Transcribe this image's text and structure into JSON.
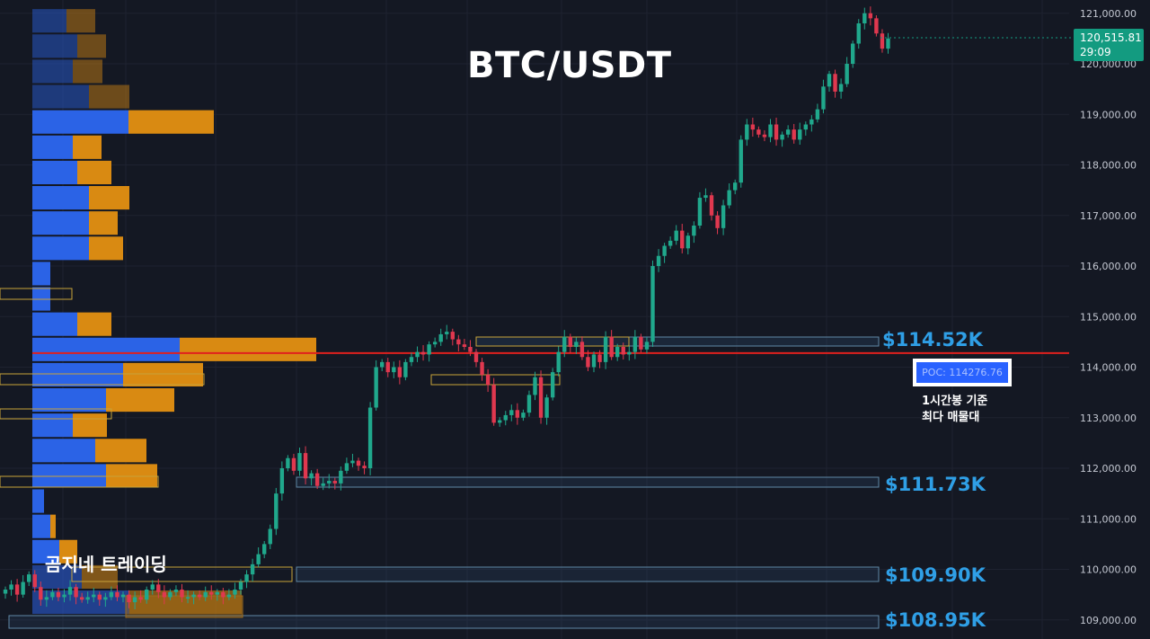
{
  "chart_data": {
    "type": "candlestick",
    "title": "BTC/USDT",
    "watermark": "곰지네 트레이딩",
    "price_axis": {
      "ticks": [
        "121,000.00",
        "120,000.00",
        "119,000.00",
        "118,000.00",
        "117,000.00",
        "116,000.00",
        "115,000.00",
        "114,000.00",
        "113,000.00",
        "112,000.00",
        "111,000.00",
        "110,000.00",
        "109,000.00"
      ],
      "range": [
        108650,
        121250
      ]
    },
    "current_price": {
      "price": "120,515.81",
      "countdown": "29:09",
      "color": "#139b80"
    },
    "poc": {
      "label": "POC: 114276.76",
      "value": 114276.76,
      "note_lines": [
        "1시간봉 기준",
        "최다 매물대"
      ],
      "line_color": "#e0201e"
    },
    "levels": [
      {
        "label": "$114.52K",
        "value": 114520
      },
      {
        "label": "$111.73K",
        "value": 111730
      },
      {
        "label": "$109.90K",
        "value": 109900
      },
      {
        "label": "$108.95K",
        "value": 108950
      }
    ],
    "candles_close": [
      109600,
      109700,
      109500,
      109750,
      109900,
      109650,
      109400,
      109450,
      109550,
      109450,
      109500,
      109650,
      109450,
      109400,
      109450,
      109500,
      109400,
      109450,
      109550,
      109450,
      109500,
      109350,
      109450,
      109400,
      109600,
      109700,
      109550,
      109450,
      109550,
      109600,
      109450,
      109450,
      109500,
      109450,
      109550,
      109500,
      109550,
      109450,
      109500,
      109600,
      109750,
      109900,
      110100,
      110300,
      110500,
      110800,
      111500,
      112000,
      112200,
      111950,
      112300,
      111800,
      111900,
      111650,
      111700,
      111750,
      111700,
      111950,
      112100,
      112150,
      112050,
      112000,
      113200,
      114000,
      114100,
      113900,
      114000,
      113800,
      114100,
      114200,
      114300,
      114250,
      114450,
      114500,
      114650,
      114700,
      114550,
      114450,
      114400,
      114300,
      114100,
      113850,
      113650,
      112900,
      112950,
      113050,
      113150,
      113000,
      113100,
      113450,
      113800,
      113000,
      113400,
      113900,
      114300,
      114600,
      114400,
      114500,
      114200,
      114000,
      114250,
      114100,
      114600,
      114200,
      114400,
      114250,
      114300,
      114600,
      114350,
      114500,
      116000,
      116200,
      116400,
      116500,
      116700,
      116350,
      116600,
      116800,
      117350,
      117400,
      117000,
      116750,
      117200,
      117500,
      117650,
      118500,
      118800,
      118700,
      118600,
      118550,
      118800,
      118500,
      118600,
      118700,
      118500,
      118700,
      118800,
      118900,
      119100,
      119550,
      119800,
      119450,
      119600,
      120000,
      120400,
      120800,
      121000,
      120900,
      120600,
      120300,
      120500
    ],
    "volume_profile": [
      {
        "price": 120850,
        "buy": 38,
        "sell": 32
      },
      {
        "price": 120350,
        "buy": 50,
        "sell": 32
      },
      {
        "price": 119850,
        "buy": 45,
        "sell": 33
      },
      {
        "price": 119350,
        "buy": 63,
        "sell": 45
      },
      {
        "price": 118850,
        "buy": 107,
        "sell": 95
      },
      {
        "price": 118350,
        "buy": 45,
        "sell": 32
      },
      {
        "price": 117850,
        "buy": 50,
        "sell": 38
      },
      {
        "price": 117350,
        "buy": 63,
        "sell": 45
      },
      {
        "price": 116850,
        "buy": 63,
        "sell": 32
      },
      {
        "price": 116350,
        "buy": 63,
        "sell": 38
      },
      {
        "price": 115850,
        "buy": 20,
        "sell": 0
      },
      {
        "price": 115350,
        "buy": 20,
        "sell": 0
      },
      {
        "price": 114850,
        "buy": 50,
        "sell": 38
      },
      {
        "price": 114350,
        "buy": 164,
        "sell": 152
      },
      {
        "price": 113850,
        "buy": 101,
        "sell": 89
      },
      {
        "price": 113350,
        "buy": 82,
        "sell": 76
      },
      {
        "price": 112850,
        "buy": 45,
        "sell": 38
      },
      {
        "price": 112350,
        "buy": 70,
        "sell": 57
      },
      {
        "price": 111850,
        "buy": 82,
        "sell": 57
      },
      {
        "price": 111350,
        "buy": 13,
        "sell": 0
      },
      {
        "price": 110850,
        "buy": 20,
        "sell": 6
      },
      {
        "price": 110350,
        "buy": 30,
        "sell": 20
      },
      {
        "price": 109850,
        "buy": 55,
        "sell": 40
      },
      {
        "price": 109350,
        "buy": 108,
        "sell": 125
      }
    ]
  }
}
